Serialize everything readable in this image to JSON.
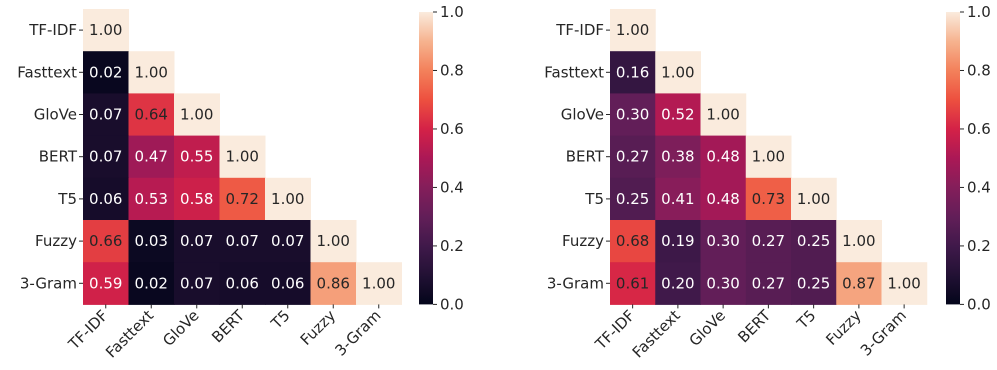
{
  "chart_data": [
    {
      "type": "heatmap",
      "title": "",
      "labels": [
        "TF-IDF",
        "Fasttext",
        "GloVe",
        "BERT",
        "T5",
        "Fuzzy",
        "3-Gram"
      ],
      "mask": "lower-triangle",
      "values": [
        [
          1.0
        ],
        [
          0.02,
          1.0
        ],
        [
          0.07,
          0.64,
          1.0
        ],
        [
          0.07,
          0.47,
          0.55,
          1.0
        ],
        [
          0.06,
          0.53,
          0.58,
          0.72,
          1.0
        ],
        [
          0.66,
          0.03,
          0.07,
          0.07,
          0.07,
          1.0
        ],
        [
          0.59,
          0.02,
          0.07,
          0.06,
          0.06,
          0.86,
          1.0
        ]
      ],
      "colorbar": {
        "min": 0.0,
        "max": 1.0,
        "ticks": [
          "0.0",
          "0.2",
          "0.4",
          "0.6",
          "0.8",
          "1.0"
        ],
        "colormap": "rocket"
      }
    },
    {
      "type": "heatmap",
      "title": "",
      "labels": [
        "TF-IDF",
        "Fasttext",
        "GloVe",
        "BERT",
        "T5",
        "Fuzzy",
        "3-Gram"
      ],
      "mask": "lower-triangle",
      "values": [
        [
          1.0
        ],
        [
          0.16,
          1.0
        ],
        [
          0.3,
          0.52,
          1.0
        ],
        [
          0.27,
          0.38,
          0.48,
          1.0
        ],
        [
          0.25,
          0.41,
          0.48,
          0.73,
          1.0
        ],
        [
          0.68,
          0.19,
          0.3,
          0.27,
          0.25,
          1.0
        ],
        [
          0.61,
          0.2,
          0.3,
          0.27,
          0.25,
          0.87,
          1.0
        ]
      ],
      "colorbar": {
        "min": 0.0,
        "max": 1.0,
        "ticks": [
          "0.0",
          "0.2",
          "0.4",
          "0.6",
          "0.8",
          "1.0"
        ],
        "colormap": "rocket"
      }
    }
  ]
}
